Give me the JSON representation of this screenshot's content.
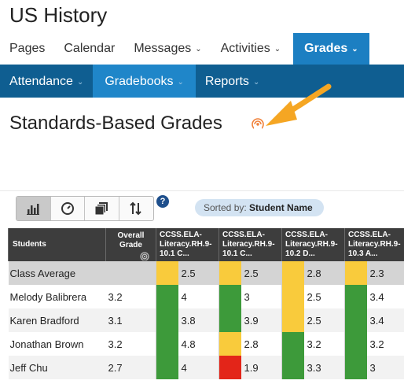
{
  "course": {
    "title": "US History"
  },
  "top_nav": [
    {
      "label": "Pages",
      "dropdown": false,
      "active": false
    },
    {
      "label": "Calendar",
      "dropdown": false,
      "active": false
    },
    {
      "label": "Messages",
      "dropdown": true,
      "active": false
    },
    {
      "label": "Activities",
      "dropdown": true,
      "active": false
    },
    {
      "label": "Grades",
      "dropdown": true,
      "active": true
    }
  ],
  "sub_nav": [
    {
      "label": "Attendance",
      "dropdown": true,
      "active": false
    },
    {
      "label": "Gradebooks",
      "dropdown": true,
      "active": true
    },
    {
      "label": "Reports",
      "dropdown": true,
      "active": false
    }
  ],
  "page": {
    "title": "Standards-Based Grades",
    "title_icon": "rss-icon"
  },
  "toolbar": {
    "buttons": [
      {
        "icon": "bar-chart-icon",
        "active": true
      },
      {
        "icon": "clock-icon",
        "active": false
      },
      {
        "icon": "copy-pages-icon",
        "active": false
      },
      {
        "icon": "sort-arrows-icon",
        "active": false
      }
    ],
    "help_label": "?",
    "sort_label": "Sorted by:",
    "sort_value": "Student Name"
  },
  "table": {
    "header_students": "Students",
    "header_overall": "Overall Grade",
    "standards": [
      "CCSS.ELA-Literacy.RH.9-10.1 C...",
      "CCSS.ELA-Literacy.RH.9-10.1 C...",
      "CCSS.ELA-Literacy.RH.9-10.2 D...",
      "CCSS.ELA-Literacy.RH.9-10.3 A..."
    ],
    "rows": [
      {
        "name": "Class Average",
        "overall": "",
        "scores": [
          "2.5",
          "2.5",
          "2.8",
          "2.3"
        ],
        "colors": [
          "yellow",
          "yellow",
          "yellow",
          "yellow"
        ]
      },
      {
        "name": "Melody Balibrera",
        "overall": "3.2",
        "scores": [
          "4",
          "3",
          "2.5",
          "3.4"
        ],
        "colors": [
          "green",
          "green",
          "yellow",
          "green"
        ]
      },
      {
        "name": "Karen Bradford",
        "overall": "3.1",
        "scores": [
          "3.8",
          "3.9",
          "2.5",
          "3.4"
        ],
        "colors": [
          "green",
          "green",
          "yellow",
          "green"
        ]
      },
      {
        "name": "Jonathan Brown",
        "overall": "3.2",
        "scores": [
          "4.8",
          "2.8",
          "3.2",
          "3.2"
        ],
        "colors": [
          "green",
          "yellow",
          "green",
          "green"
        ]
      },
      {
        "name": "Jeff Chu",
        "overall": "2.7",
        "scores": [
          "4",
          "1.9",
          "3.3",
          "3"
        ],
        "colors": [
          "green",
          "red",
          "green",
          "green"
        ]
      }
    ]
  },
  "colors": {
    "top_nav_active": "#1c7fc2",
    "sub_nav_bg": "#0f5e91",
    "sub_nav_active": "#1f86c9",
    "mastery_green": "#3d9a3a",
    "mastery_yellow": "#f9cb3c",
    "mastery_red": "#e32519",
    "annotation_arrow": "#f5a623"
  }
}
